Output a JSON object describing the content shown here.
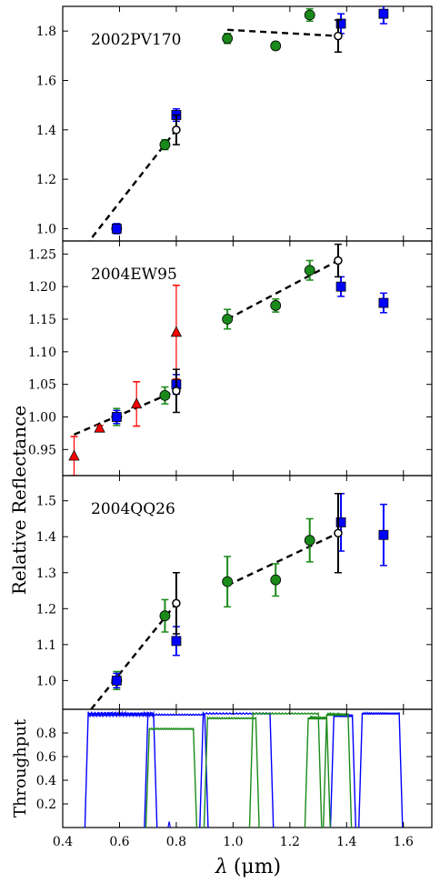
{
  "figure": {
    "ylabel": "Relative Reflectance",
    "xlabel": "λ (μm)",
    "xlabel_parts": {
      "symbol": "λ",
      "unit": "(μm)"
    },
    "xlim": [
      0.4,
      1.7
    ],
    "xticks": [
      "0.4",
      "0.6",
      "0.8",
      "1.0",
      "1.2",
      "1.4",
      "1.6"
    ]
  },
  "colors": {
    "green": "#1a8a1a",
    "blue": "#0000ff",
    "red": "#ff0000",
    "black": "#000000"
  },
  "chart_data": [
    {
      "type": "scatter",
      "title": "2002PV170",
      "ylim": [
        0.95,
        1.9
      ],
      "yticks": [
        "1.0",
        "1.2",
        "1.4",
        "1.6",
        "1.8"
      ],
      "series": [
        {
          "marker": "circle",
          "color": "green",
          "points": [
            {
              "x": 0.59,
              "y": 1.0,
              "err": 0.02
            },
            {
              "x": 0.76,
              "y": 1.34,
              "err": 0.02
            },
            {
              "x": 0.98,
              "y": 1.77,
              "err": 0.02
            },
            {
              "x": 1.15,
              "y": 1.74,
              "err": 0.015
            },
            {
              "x": 1.27,
              "y": 1.865,
              "err": 0.025
            }
          ]
        },
        {
          "marker": "square",
          "color": "blue",
          "points": [
            {
              "x": 0.59,
              "y": 1.0,
              "err": 0.02
            },
            {
              "x": 0.8,
              "y": 1.46,
              "err": 0.025
            },
            {
              "x": 1.38,
              "y": 1.83,
              "err": 0.04
            },
            {
              "x": 1.53,
              "y": 1.87,
              "err": 0.04
            }
          ]
        },
        {
          "marker": "open-circle",
          "color": "black",
          "points": [
            {
              "x": 0.8,
              "y": 1.4,
              "err": 0.06
            },
            {
              "x": 1.37,
              "y": 1.78,
              "err": 0.065
            }
          ]
        }
      ],
      "fits": [
        {
          "x": [
            0.48,
            0.8
          ],
          "y": [
            0.93,
            1.4
          ]
        },
        {
          "x": [
            0.98,
            1.37
          ],
          "y": [
            1.805,
            1.78
          ]
        }
      ]
    },
    {
      "type": "scatter",
      "title": "2004EW95",
      "ylim": [
        0.91,
        1.27
      ],
      "yticks": [
        "0.95",
        "1.00",
        "1.05",
        "1.10",
        "1.15",
        "1.20",
        "1.25"
      ],
      "series": [
        {
          "marker": "triangle",
          "color": "red",
          "points": [
            {
              "x": 0.44,
              "y": 0.94,
              "err": 0.03
            },
            {
              "x": 0.53,
              "y": 0.983,
              "err": 0.004
            },
            {
              "x": 0.66,
              "y": 1.02,
              "err": 0.034
            },
            {
              "x": 0.8,
              "y": 1.13,
              "err": 0.072
            }
          ]
        },
        {
          "marker": "circle",
          "color": "green",
          "points": [
            {
              "x": 0.59,
              "y": 1.0,
              "err": 0.013
            },
            {
              "x": 0.76,
              "y": 1.033,
              "err": 0.013
            },
            {
              "x": 0.98,
              "y": 1.15,
              "err": 0.015
            },
            {
              "x": 1.15,
              "y": 1.171,
              "err": 0.01
            },
            {
              "x": 1.27,
              "y": 1.225,
              "err": 0.015
            }
          ]
        },
        {
          "marker": "square",
          "color": "blue",
          "points": [
            {
              "x": 0.59,
              "y": 1.0,
              "err": 0.01
            },
            {
              "x": 0.8,
              "y": 1.05,
              "err": 0.015
            },
            {
              "x": 1.38,
              "y": 1.2,
              "err": 0.015
            },
            {
              "x": 1.53,
              "y": 1.175,
              "err": 0.015
            }
          ]
        },
        {
          "marker": "open-circle",
          "color": "black",
          "points": [
            {
              "x": 0.8,
              "y": 1.04,
              "err": 0.033
            },
            {
              "x": 1.37,
              "y": 1.24,
              "err": 0.025
            }
          ]
        }
      ],
      "fits": [
        {
          "x": [
            0.44,
            0.8
          ],
          "y": [
            0.973,
            1.04
          ]
        },
        {
          "x": [
            0.98,
            1.37
          ],
          "y": [
            1.15,
            1.24
          ]
        }
      ]
    },
    {
      "type": "scatter",
      "title": "2004QQ26",
      "ylim": [
        0.92,
        1.57
      ],
      "yticks": [
        "1.0",
        "1.1",
        "1.2",
        "1.3",
        "1.4",
        "1.5"
      ],
      "series": [
        {
          "marker": "circle",
          "color": "green",
          "points": [
            {
              "x": 0.59,
              "y": 1.0,
              "err": 0.025
            },
            {
              "x": 0.76,
              "y": 1.18,
              "err": 0.045
            },
            {
              "x": 0.98,
              "y": 1.275,
              "err": 0.07
            },
            {
              "x": 1.15,
              "y": 1.28,
              "err": 0.045
            },
            {
              "x": 1.27,
              "y": 1.39,
              "err": 0.06
            }
          ]
        },
        {
          "marker": "square",
          "color": "blue",
          "points": [
            {
              "x": 0.59,
              "y": 1.0,
              "err": 0.02
            },
            {
              "x": 0.8,
              "y": 1.11,
              "err": 0.04
            },
            {
              "x": 1.38,
              "y": 1.44,
              "err": 0.08
            },
            {
              "x": 1.53,
              "y": 1.405,
              "err": 0.085
            }
          ]
        },
        {
          "marker": "open-circle",
          "color": "black",
          "points": [
            {
              "x": 0.8,
              "y": 1.215,
              "err": 0.085
            },
            {
              "x": 1.37,
              "y": 1.41,
              "err": 0.11
            }
          ]
        }
      ],
      "fits": [
        {
          "x": [
            0.5,
            0.8
          ],
          "y": [
            0.92,
            1.215
          ]
        },
        {
          "x": [
            0.98,
            1.37
          ],
          "y": [
            1.265,
            1.41
          ]
        }
      ]
    },
    {
      "type": "line",
      "ylabel": "Throughput",
      "ylim": [
        0,
        1.0
      ],
      "yticks": [
        "0.2",
        "0.4",
        "0.6",
        "0.8"
      ],
      "bands": [
        {
          "color": "blue",
          "lo": 0.49,
          "hi": 0.72,
          "level": 0.98,
          "ripple": true
        },
        {
          "color": "blue",
          "lo": 0.7,
          "hi": 0.9,
          "level": 0.96,
          "ripple": false
        },
        {
          "color": "blue",
          "lo": 0.895,
          "hi": 1.13,
          "level": 0.97,
          "ripple": false
        },
        {
          "color": "blue",
          "lo": 1.355,
          "hi": 1.42,
          "level": 0.95,
          "ripple": false
        },
        {
          "color": "blue",
          "lo": 1.455,
          "hi": 1.585,
          "level": 0.97,
          "ripple": false
        },
        {
          "color": "green",
          "lo": 0.705,
          "hi": 0.86,
          "level": 0.84,
          "ripple": false
        },
        {
          "color": "green",
          "lo": 0.91,
          "hi": 1.08,
          "level": 0.93,
          "ripple": false
        },
        {
          "color": "green",
          "lo": 1.07,
          "hi": 1.3,
          "level": 0.97,
          "ripple": false
        },
        {
          "color": "green",
          "lo": 1.265,
          "hi": 1.33,
          "level": 0.93,
          "ripple": false
        },
        {
          "color": "green",
          "lo": 1.33,
          "hi": 1.405,
          "level": 0.96,
          "ripple": false
        }
      ],
      "spikes": [
        {
          "x": 0.775,
          "level": 0.05,
          "color": "blue"
        }
      ]
    }
  ]
}
